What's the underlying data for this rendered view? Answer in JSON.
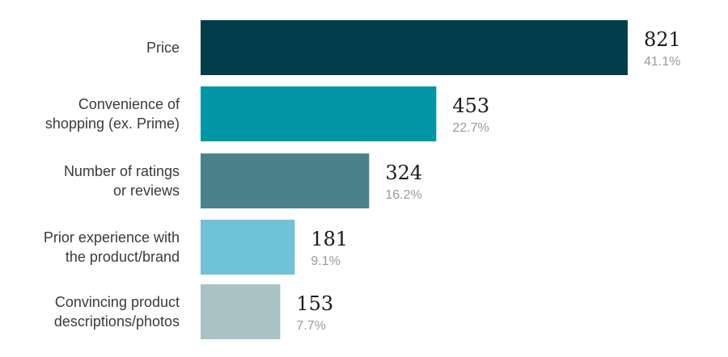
{
  "chart_data": {
    "type": "bar",
    "orientation": "horizontal",
    "categories": [
      [
        "Price"
      ],
      [
        "Convenience of",
        "shopping (ex. Prime)"
      ],
      [
        "Number of ratings",
        "or reviews"
      ],
      [
        "Prior experience with",
        "the product/brand"
      ],
      [
        "Convincing product",
        "descriptions/photos"
      ]
    ],
    "values": [
      821,
      453,
      324,
      181,
      153
    ],
    "percent_labels": [
      "41.1%",
      "22.7%",
      "16.2%",
      "9.1%",
      "7.7%"
    ],
    "colors": [
      "#013d4a",
      "#0096a5",
      "#4a818a",
      "#70c2d6",
      "#a9c2c6"
    ],
    "title": "",
    "xlabel": "",
    "ylabel": "",
    "grid": false,
    "legend": "none"
  }
}
